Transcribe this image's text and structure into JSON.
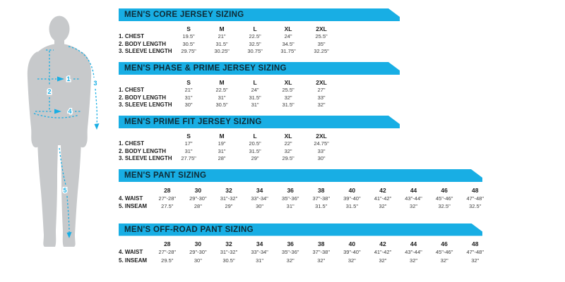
{
  "colors": {
    "accent": "#18AEE4",
    "banner_text": "#0E2B36",
    "silhouette": "#C7C9CB",
    "label_text": "#1B1B1B",
    "value_text": "#3C3C3C"
  },
  "diagram": {
    "markers": [
      "1",
      "2",
      "3",
      "4",
      "5"
    ]
  },
  "tables": [
    {
      "title": "MEN'S CORE JERSEY SIZING",
      "columns": [
        "S",
        "M",
        "L",
        "XL",
        "2XL"
      ],
      "rows": [
        {
          "label": "1. CHEST",
          "values": [
            "19.5\"",
            "21\"",
            "22.5\"",
            "24\"",
            "25.5\""
          ]
        },
        {
          "label": "2. BODY LENGTH",
          "values": [
            "30.5\"",
            "31.5\"",
            "32.5\"",
            "34.5\"",
            "35\""
          ]
        },
        {
          "label": "3. SLEEVE LENGTH",
          "values": [
            "29.75\"",
            "30.25\"",
            "30.75\"",
            "31.75\"",
            "32.25\""
          ]
        }
      ]
    },
    {
      "title": "MEN'S PHASE & PRIME JERSEY SIZING",
      "columns": [
        "S",
        "M",
        "L",
        "XL",
        "2XL"
      ],
      "rows": [
        {
          "label": "1. CHEST",
          "values": [
            "21\"",
            "22.5\"",
            "24\"",
            "25.5\"",
            "27\""
          ]
        },
        {
          "label": "2. BODY LENGTH",
          "values": [
            "31\"",
            "31\"",
            "31.5\"",
            "32\"",
            "33\""
          ]
        },
        {
          "label": "3. SLEEVE LENGTH",
          "values": [
            "30\"",
            "30.5\"",
            "31\"",
            "31.5\"",
            "32\""
          ]
        }
      ]
    },
    {
      "title": "MEN'S PRIME FIT JERSEY SIZING",
      "columns": [
        "S",
        "M",
        "L",
        "XL",
        "2XL"
      ],
      "rows": [
        {
          "label": "1. CHEST",
          "values": [
            "17\"",
            "19\"",
            "20.5\"",
            "22\"",
            "24.75\""
          ]
        },
        {
          "label": "2. BODY LENGTH",
          "values": [
            "31\"",
            "31\"",
            "31.5\"",
            "32\"",
            "33\""
          ]
        },
        {
          "label": "3. SLEEVE LENGTH",
          "values": [
            "27.75\"",
            "28\"",
            "29\"",
            "29.5\"",
            "30\""
          ]
        }
      ]
    },
    {
      "title": "MEN'S PANT SIZING",
      "columns": [
        "28",
        "30",
        "32",
        "34",
        "36",
        "38",
        "40",
        "42",
        "44",
        "46",
        "48"
      ],
      "rows": [
        {
          "label": "4. WAIST",
          "values": [
            "27\"-28\"",
            "29\"-30\"",
            "31\"-32\"",
            "33\"-34\"",
            "35\"-36\"",
            "37\"-38\"",
            "39\"-40\"",
            "41\"-42\"",
            "43\"-44\"",
            "45\"-46\"",
            "47\"-48\""
          ]
        },
        {
          "label": "5. INSEAM",
          "values": [
            "27.5\"",
            "28\"",
            "29\"",
            "30\"",
            "31\"",
            "31.5\"",
            "31.5\"",
            "32\"",
            "32\"",
            "32.5\"",
            "32.5\""
          ]
        }
      ]
    },
    {
      "title": "MEN'S OFF-ROAD PANT SIZING",
      "columns": [
        "28",
        "30",
        "32",
        "34",
        "36",
        "38",
        "40",
        "42",
        "44",
        "46",
        "48"
      ],
      "rows": [
        {
          "label": "4. WAIST",
          "values": [
            "27\"-28\"",
            "29\"-30\"",
            "31\"-32\"",
            "33\"-34\"",
            "35\"-36\"",
            "37\"-38\"",
            "39\"-40\"",
            "41\"-42\"",
            "43\"-44\"",
            "45\"-46\"",
            "47\"-48\""
          ]
        },
        {
          "label": "5. INSEAM",
          "values": [
            "29.5\"",
            "30\"",
            "30.5\"",
            "31\"",
            "32\"",
            "32\"",
            "32\"",
            "32\"",
            "32\"",
            "32\"",
            "32\""
          ]
        }
      ]
    }
  ]
}
